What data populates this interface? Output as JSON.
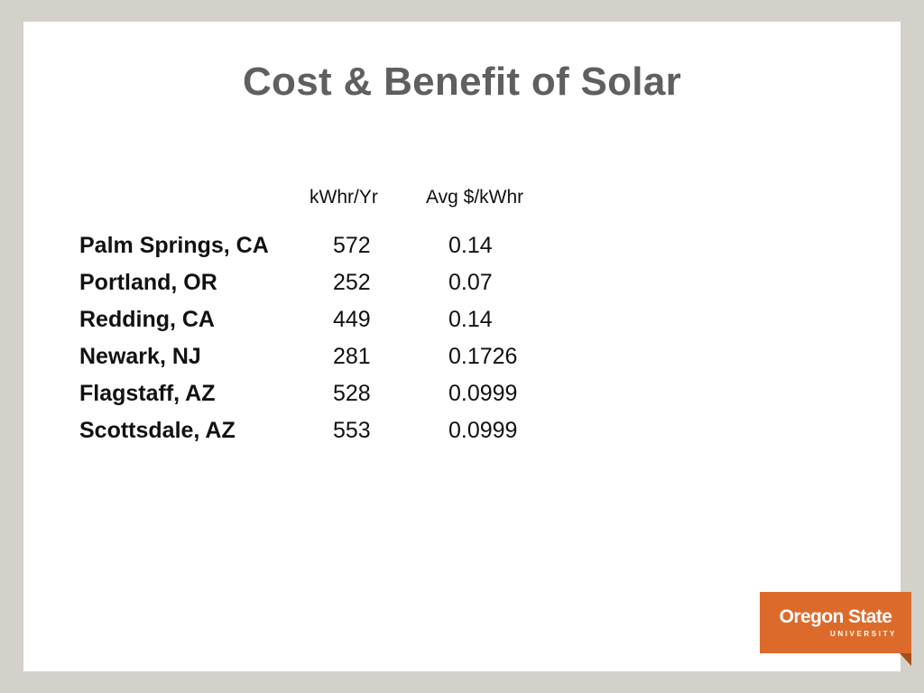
{
  "slide": {
    "title": "Cost & Benefit of Solar",
    "columns": {
      "kwh": "kWhr/Yr",
      "avg": "Avg $/kWhr"
    },
    "rows": [
      {
        "city": "Palm Springs, CA",
        "kwh": "572",
        "avg": "0.14"
      },
      {
        "city": "Portland, OR",
        "kwh": "252",
        "avg": "0.07"
      },
      {
        "city": "Redding, CA",
        "kwh": "449",
        "avg": "0.14"
      },
      {
        "city": "Newark, NJ",
        "kwh": "281",
        "avg": "0.1726"
      },
      {
        "city": "Flagstaff, AZ",
        "kwh": "528",
        "avg": "0.0999"
      },
      {
        "city": "Scottsdale, AZ",
        "kwh": "553",
        "avg": "0.0999"
      }
    ]
  },
  "logo": {
    "name": "Oregon State",
    "subtitle": "UNIVERSITY",
    "color": "#dc6b2b"
  }
}
